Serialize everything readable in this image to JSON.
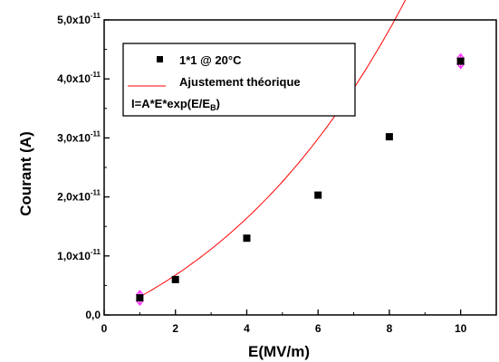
{
  "chart_data": {
    "type": "scatter",
    "xlabel": "E(MV/m)",
    "ylabel": "Courant (A)",
    "xlim": [
      0,
      11
    ],
    "ylim": [
      0,
      5e-11
    ],
    "x_ticks": [
      0,
      2,
      4,
      6,
      8,
      10
    ],
    "x_tick_labels": [
      "0",
      "2",
      "4",
      "6",
      "8",
      "10"
    ],
    "y_ticks": [
      0,
      1e-11,
      2e-11,
      3e-11,
      4e-11,
      5e-11
    ],
    "y_tick_labels": [
      {
        "mantissa": "0,0",
        "exp": ""
      },
      {
        "mantissa": "1,0x10",
        "exp": "-11"
      },
      {
        "mantissa": "2,0x10",
        "exp": "-11"
      },
      {
        "mantissa": "3,0x10",
        "exp": "-11"
      },
      {
        "mantissa": "4,0x10",
        "exp": "-11"
      },
      {
        "mantissa": "5,0x10",
        "exp": "-11"
      }
    ],
    "grid": false,
    "legend_placement": "top-left",
    "series": [
      {
        "name": "1*1 @ 20°C",
        "kind": "scatter",
        "marker": "square",
        "color": "#000000",
        "x": [
          1,
          2,
          4,
          6,
          8,
          10
        ],
        "y": [
          2.9e-12,
          6e-12,
          1.3e-11,
          2.03e-11,
          3.02e-11,
          4.3e-11
        ]
      },
      {
        "name": "Ajustement théorique",
        "kind": "line",
        "color": "#ff0000",
        "model": "I = A*E*exp(E/EB)",
        "A": 2.78e-12,
        "EB": 10.3,
        "x_range": [
          1,
          10
        ]
      }
    ],
    "error_bars": {
      "color": "#ff33ff",
      "points": [
        {
          "x": 1,
          "y": 2.9e-12,
          "err": 1.2e-12
        },
        {
          "x": 10,
          "y": 4.3e-11,
          "err": 1.2e-12
        }
      ]
    },
    "legend_formula": {
      "main": "I=A*E*exp(E/E",
      "sub": "B",
      "close": ")"
    }
  }
}
